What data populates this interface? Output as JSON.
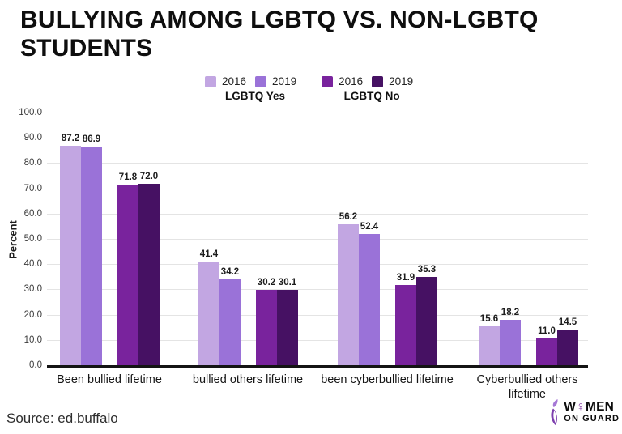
{
  "title": "BULLYING AMONG LGBTQ VS. NON-LGBTQ STUDENTS",
  "legend": {
    "groups": [
      {
        "label": "LGBTQ Yes",
        "items": [
          {
            "label": "2016",
            "color": "#C2A6E2"
          },
          {
            "label": "2019",
            "color": "#9A72D8"
          }
        ]
      },
      {
        "label": "LGBTQ No",
        "items": [
          {
            "label": "2016",
            "color": "#79239D"
          },
          {
            "label": "2019",
            "color": "#461163"
          }
        ]
      }
    ]
  },
  "chart_data": {
    "type": "bar",
    "title": "BULLYING AMONG LGBTQ VS. NON-LGBTQ STUDENTS",
    "xlabel": "",
    "ylabel": "Percent",
    "ylim": [
      0,
      100
    ],
    "ytick_step": 10,
    "grid": true,
    "legend_position": "top",
    "categories": [
      "Been bullied lifetime",
      "bullied others lifetime",
      "been cyberbullied lifetime",
      "Cyberbullied others lifetime"
    ],
    "series": [
      {
        "name": "2016 LGBTQ Yes",
        "color": "#C2A6E2",
        "values": [
          87.2,
          41.4,
          56.2,
          15.6
        ]
      },
      {
        "name": "2019 LGBTQ Yes",
        "color": "#9A72D8",
        "values": [
          86.9,
          34.2,
          52.4,
          18.2
        ]
      },
      {
        "name": "2016 LGBTQ No",
        "color": "#79239D",
        "values": [
          71.8,
          30.2,
          31.9,
          11.0
        ]
      },
      {
        "name": "2019 LGBTQ No",
        "color": "#461163",
        "values": [
          72.0,
          30.1,
          35.3,
          14.5
        ]
      }
    ]
  },
  "footer": {
    "source": "Source: ed.buffalo"
  },
  "logo": {
    "line1_pre": "W",
    "line1_symbol": "♀",
    "line1_post": "MEN",
    "line2": "ON GUARD",
    "accent_color": "#7d2f9e"
  }
}
